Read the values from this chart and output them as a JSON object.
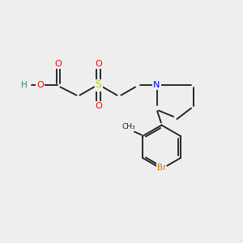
{
  "bg": "#eeeeee",
  "bond_color": "#1a1a1a",
  "colors": {
    "O": "#ff0000",
    "S": "#cccc00",
    "N": "#0000ff",
    "Br": "#cc7700",
    "H": "#2e8b57",
    "C": "#1a1a1a"
  }
}
